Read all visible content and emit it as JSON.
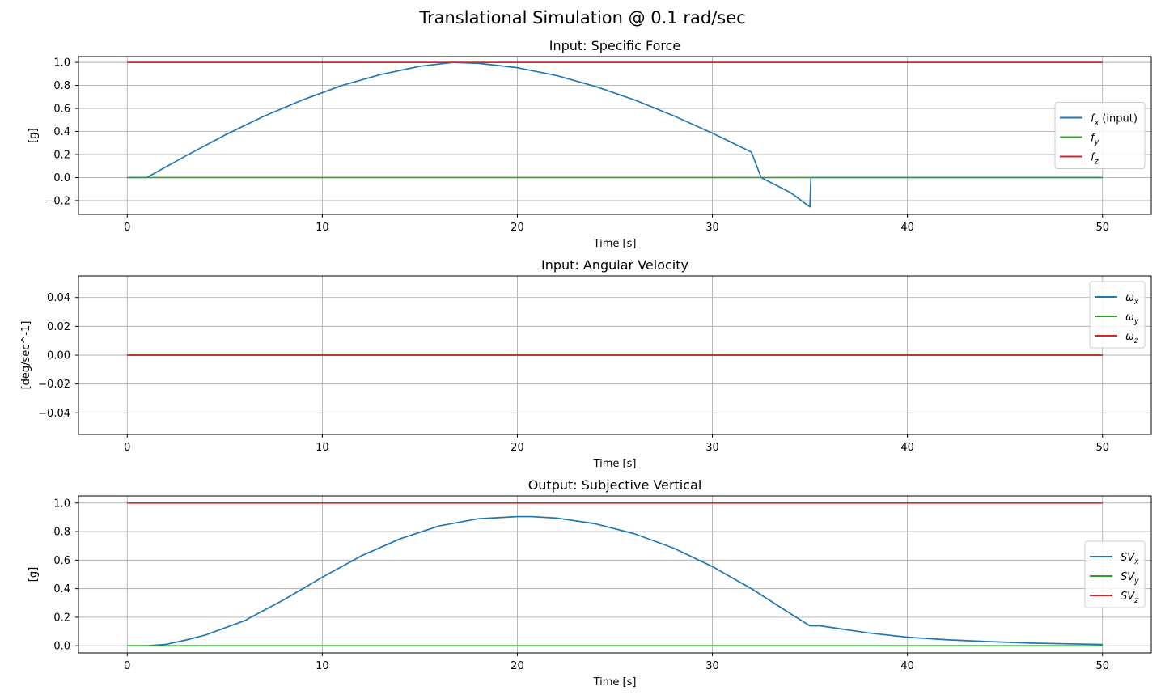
{
  "figure": {
    "title": "Translational Simulation @ 0.1 rad/sec"
  },
  "colors": {
    "blue": "#1f77b4",
    "green": "#2ca02c",
    "red": "#d62728",
    "grid": "#b0b0b0"
  },
  "chart_data": [
    {
      "type": "line",
      "title": "Input: Specific Force",
      "xlabel": "Time [s]",
      "ylabel": "[g]",
      "xlim": [
        -2.5,
        52.5
      ],
      "ylim": [
        -0.32,
        1.05
      ],
      "xticks": [
        0,
        10,
        20,
        30,
        40,
        50
      ],
      "yticks": [
        -0.2,
        0.0,
        0.2,
        0.4,
        0.6,
        0.8,
        1.0
      ],
      "ytick_labels": [
        "−0.2",
        "0.0",
        "0.2",
        "0.4",
        "0.6",
        "0.8",
        "1.0"
      ],
      "grid": true,
      "legend": {
        "position": "center-right",
        "entries": [
          {
            "main": "f",
            "sub": "x",
            "suffix": " (input)",
            "italic": true,
            "color": "blue"
          },
          {
            "main": "f",
            "sub": "y",
            "suffix": "",
            "italic": true,
            "color": "green"
          },
          {
            "main": "f",
            "sub": "z",
            "suffix": "",
            "italic": true,
            "color": "red"
          }
        ]
      },
      "series": [
        {
          "name": "fx (input)",
          "color": "blue",
          "x": [
            0,
            1,
            3,
            5,
            7,
            9,
            11,
            13,
            15,
            16.7,
            18,
            20,
            22,
            24,
            26,
            28,
            30,
            32,
            32.5,
            34,
            35,
            35.05,
            50
          ],
          "y": [
            0,
            0,
            0.188,
            0.368,
            0.532,
            0.675,
            0.799,
            0.895,
            0.966,
            1.0,
            0.992,
            0.954,
            0.886,
            0.791,
            0.675,
            0.537,
            0.385,
            0.221,
            0.0,
            -0.13,
            -0.255,
            0.0,
            0.0
          ]
        },
        {
          "name": "fy",
          "color": "green",
          "x": [
            0,
            50
          ],
          "y": [
            0,
            0
          ]
        },
        {
          "name": "fz",
          "color": "red",
          "x": [
            0,
            50
          ],
          "y": [
            1,
            1
          ]
        }
      ]
    },
    {
      "type": "line",
      "title": "Input: Angular Velocity",
      "xlabel": "Time [s]",
      "ylabel": "[deg/sec^-1]",
      "xlim": [
        -2.5,
        52.5
      ],
      "ylim": [
        -0.055,
        0.055
      ],
      "xticks": [
        0,
        10,
        20,
        30,
        40,
        50
      ],
      "yticks": [
        -0.04,
        -0.02,
        0.0,
        0.02,
        0.04
      ],
      "ytick_labels": [
        "−0.04",
        "−0.02",
        "0.00",
        "0.02",
        "0.04"
      ],
      "grid": true,
      "legend": {
        "position": "top-right",
        "entries": [
          {
            "main": "ω",
            "sub": "x",
            "suffix": "",
            "italic": true,
            "color": "blue"
          },
          {
            "main": "ω",
            "sub": "y",
            "suffix": "",
            "italic": true,
            "color": "green"
          },
          {
            "main": "ω",
            "sub": "z",
            "suffix": "",
            "italic": true,
            "color": "red"
          }
        ]
      },
      "series": [
        {
          "name": "ωx",
          "color": "blue",
          "x": [
            0,
            50
          ],
          "y": [
            0,
            0
          ]
        },
        {
          "name": "ωy",
          "color": "green",
          "x": [
            0,
            50
          ],
          "y": [
            0,
            0
          ]
        },
        {
          "name": "ωz",
          "color": "red",
          "x": [
            0,
            50
          ],
          "y": [
            0,
            0
          ]
        }
      ]
    },
    {
      "type": "line",
      "title": "Output: Subjective Vertical",
      "xlabel": "Time [s]",
      "ylabel": "[g]",
      "xlim": [
        -2.5,
        52.5
      ],
      "ylim": [
        -0.05,
        1.05
      ],
      "xticks": [
        0,
        10,
        20,
        30,
        40,
        50
      ],
      "yticks": [
        0.0,
        0.2,
        0.4,
        0.6,
        0.8,
        1.0
      ],
      "ytick_labels": [
        "0.0",
        "0.2",
        "0.4",
        "0.6",
        "0.8",
        "1.0"
      ],
      "grid": true,
      "legend": {
        "position": "center-right",
        "entries": [
          {
            "main": "SV",
            "sub": "x",
            "suffix": "",
            "italic": true,
            "color": "blue"
          },
          {
            "main": "SV",
            "sub": "y",
            "suffix": "",
            "italic": true,
            "color": "green"
          },
          {
            "main": "SV",
            "sub": "z",
            "suffix": "",
            "italic": true,
            "color": "red"
          }
        ]
      },
      "series": [
        {
          "name": "SVx",
          "color": "blue",
          "x": [
            0,
            1,
            2,
            3,
            4,
            6,
            8,
            10,
            12,
            14,
            16,
            18,
            20,
            20.7,
            22,
            24,
            26,
            28,
            30,
            32,
            34,
            35,
            35.5,
            36,
            38,
            40,
            42,
            44,
            46,
            48,
            50
          ],
          "y": [
            0,
            0,
            0.01,
            0.04,
            0.075,
            0.175,
            0.32,
            0.48,
            0.63,
            0.75,
            0.84,
            0.89,
            0.905,
            0.905,
            0.895,
            0.855,
            0.785,
            0.685,
            0.555,
            0.4,
            0.225,
            0.14,
            0.14,
            0.13,
            0.09,
            0.06,
            0.042,
            0.03,
            0.02,
            0.014,
            0.009
          ]
        },
        {
          "name": "SVy",
          "color": "green",
          "x": [
            0,
            50
          ],
          "y": [
            0,
            0
          ]
        },
        {
          "name": "SVz",
          "color": "red",
          "x": [
            0,
            50
          ],
          "y": [
            1,
            1
          ]
        }
      ]
    }
  ]
}
